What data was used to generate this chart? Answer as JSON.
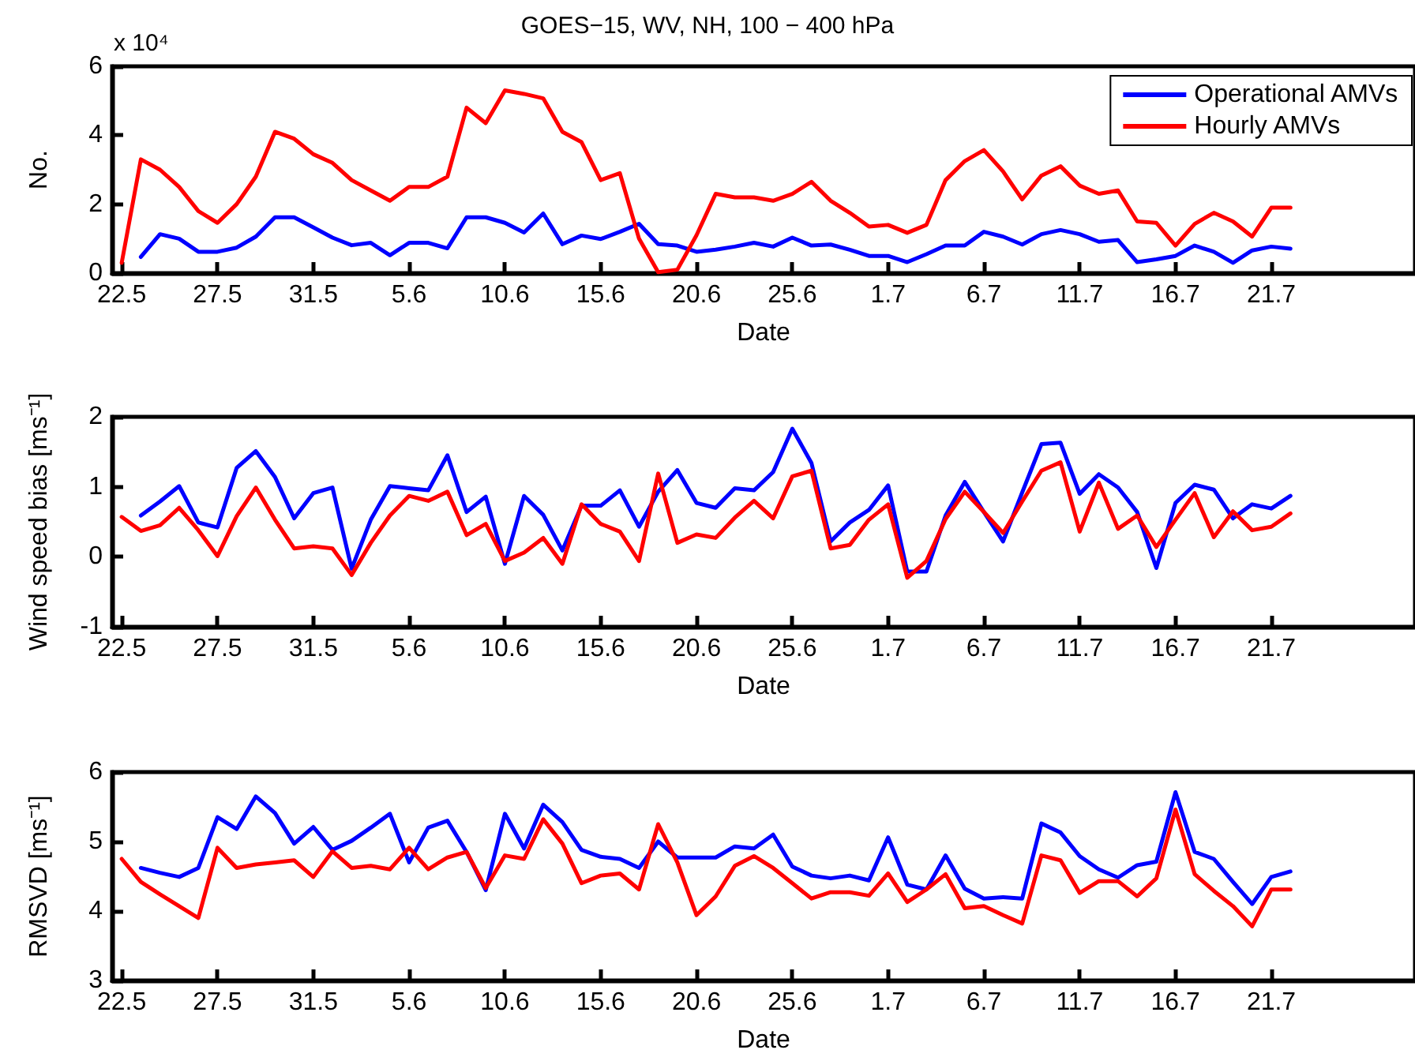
{
  "chart_data": [
    {
      "type": "line",
      "title": "GOES−15, WV, NH, 100 − 400 hPa",
      "xlabel": "Date",
      "ylabel": "No.",
      "annotations": [
        "x 10⁴"
      ],
      "legend": "top right",
      "categories": [
        "22.5",
        null,
        null,
        null,
        null,
        "27.5",
        null,
        null,
        null,
        null,
        "31.5",
        null,
        null,
        null,
        null,
        "5.6",
        null,
        null,
        null,
        null,
        "10.6",
        null,
        null,
        null,
        null,
        "15.6",
        null,
        null,
        null,
        null,
        "20.6",
        null,
        null,
        null,
        null,
        "25.6",
        null,
        null,
        null,
        null,
        "1.7",
        null,
        null,
        null,
        null,
        "6.7",
        null,
        null,
        null,
        null,
        "11.7",
        null,
        null,
        null,
        null,
        "16.7",
        null,
        null,
        null,
        null,
        "21.7",
        null,
        null,
        null,
        null,
        null,
        null,
        null
      ],
      "ylim": [
        0,
        6
      ],
      "yticks": [
        0,
        2,
        4,
        6
      ],
      "series": [
        {
          "name": "Operational AMVs",
          "color": "#0000ff",
          "values": [
            null,
            0.47,
            1.13,
            1.0,
            0.62,
            0.62,
            0.74,
            1.06,
            1.62,
            1.62,
            1.33,
            1.03,
            0.81,
            0.88,
            0.52,
            0.88,
            0.88,
            0.72,
            1.62,
            1.62,
            1.46,
            1.18,
            1.73,
            0.84,
            1.09,
            0.99,
            1.2,
            1.43,
            0.84,
            0.8,
            0.62,
            0.68,
            0.77,
            0.88,
            0.77,
            1.03,
            0.8,
            0.83,
            0.68,
            0.5,
            0.5,
            0.32,
            0.55,
            0.8,
            0.8,
            1.2,
            1.06,
            0.83,
            1.13,
            1.25,
            1.13,
            0.91,
            0.96,
            0.32,
            0.4,
            0.5,
            0.8,
            0.62,
            0.3,
            0.66,
            0.77,
            0.71,
            null,
            null,
            null,
            null,
            null,
            null
          ]
        },
        {
          "name": "Hourly AMVs",
          "color": "#ff0000",
          "values": [
            0.3,
            3.3,
            3.0,
            2.5,
            1.8,
            1.46,
            2.0,
            2.8,
            4.1,
            3.9,
            3.45,
            3.2,
            2.7,
            2.4,
            2.1,
            2.5,
            2.5,
            2.8,
            4.8,
            4.35,
            5.3,
            5.2,
            5.07,
            4.1,
            3.8,
            2.7,
            2.9,
            1.0,
            0.03,
            0.1,
            1.1,
            2.3,
            2.2,
            2.2,
            2.1,
            2.3,
            2.65,
            2.1,
            1.75,
            1.35,
            1.4,
            1.17,
            1.4,
            2.7,
            3.25,
            3.57,
            2.95,
            2.14,
            2.83,
            3.1,
            2.54,
            2.3,
            2.4,
            1.5,
            1.46,
            0.8,
            1.43,
            1.75,
            1.5,
            1.06,
            1.9,
            1.9,
            null,
            null,
            null,
            null,
            null,
            null
          ]
        }
      ]
    },
    {
      "type": "line",
      "xlabel": "Date",
      "ylabel": "Wind speed bias [ms⁻¹]",
      "categories": [
        "22.5",
        null,
        null,
        null,
        null,
        "27.5",
        null,
        null,
        null,
        null,
        "31.5",
        null,
        null,
        null,
        null,
        "5.6",
        null,
        null,
        null,
        null,
        "10.6",
        null,
        null,
        null,
        null,
        "15.6",
        null,
        null,
        null,
        null,
        "20.6",
        null,
        null,
        null,
        null,
        "25.6",
        null,
        null,
        null,
        null,
        "1.7",
        null,
        null,
        null,
        null,
        "6.7",
        null,
        null,
        null,
        null,
        "11.7",
        null,
        null,
        null,
        null,
        "16.7",
        null,
        null,
        null,
        null,
        "21.7",
        null,
        null,
        null,
        null,
        null,
        null,
        null
      ],
      "ylim": [
        -1,
        2
      ],
      "yticks": [
        -1,
        0,
        1,
        2
      ],
      "series": [
        {
          "color": "#0000ff",
          "values": [
            null,
            0.59,
            0.79,
            1.01,
            0.49,
            0.42,
            1.27,
            1.51,
            1.14,
            0.55,
            0.91,
            0.99,
            -0.17,
            0.53,
            1.01,
            0.98,
            0.95,
            1.45,
            0.64,
            0.86,
            -0.1,
            0.87,
            0.6,
            0.09,
            0.73,
            0.73,
            0.95,
            0.43,
            0.93,
            1.24,
            0.77,
            0.7,
            0.98,
            0.95,
            1.21,
            1.83,
            1.34,
            0.22,
            0.49,
            0.67,
            1.02,
            -0.21,
            -0.21,
            0.59,
            1.07,
            0.64,
            0.22,
            0.92,
            1.61,
            1.63,
            0.9,
            1.18,
            0.99,
            0.64,
            -0.16,
            0.77,
            1.03,
            0.96,
            0.55,
            0.75,
            0.69,
            0.87,
            null,
            null,
            null,
            null,
            null,
            null
          ]
        },
        {
          "color": "#ff0000",
          "values": [
            0.57,
            0.37,
            0.45,
            0.7,
            0.38,
            0.01,
            0.58,
            0.99,
            0.53,
            0.12,
            0.15,
            0.12,
            -0.26,
            0.2,
            0.59,
            0.87,
            0.8,
            0.93,
            0.31,
            0.47,
            -0.06,
            0.06,
            0.27,
            -0.1,
            0.75,
            0.47,
            0.36,
            -0.06,
            1.19,
            0.2,
            0.32,
            0.27,
            0.56,
            0.8,
            0.55,
            1.15,
            1.23,
            0.12,
            0.17,
            0.53,
            0.75,
            -0.3,
            -0.06,
            0.54,
            0.93,
            0.64,
            0.34,
            0.79,
            1.23,
            1.35,
            0.36,
            1.06,
            0.4,
            0.59,
            0.14,
            0.53,
            0.91,
            0.28,
            0.65,
            0.38,
            0.43,
            0.62,
            null,
            null,
            null,
            null,
            null,
            null
          ]
        }
      ]
    },
    {
      "type": "line",
      "xlabel": "Date",
      "ylabel": "RMSVD [ms⁻¹]",
      "categories": [
        "22.5",
        null,
        null,
        null,
        null,
        "27.5",
        null,
        null,
        null,
        null,
        "31.5",
        null,
        null,
        null,
        null,
        "5.6",
        null,
        null,
        null,
        null,
        "10.6",
        null,
        null,
        null,
        null,
        "15.6",
        null,
        null,
        null,
        null,
        "20.6",
        null,
        null,
        null,
        null,
        "25.6",
        null,
        null,
        null,
        null,
        "1.7",
        null,
        null,
        null,
        null,
        "6.7",
        null,
        null,
        null,
        null,
        "11.7",
        null,
        null,
        null,
        null,
        "16.7",
        null,
        null,
        null,
        null,
        "21.7",
        null,
        null,
        null,
        null,
        null,
        null,
        null
      ],
      "ylim": [
        3,
        6
      ],
      "yticks": [
        3,
        4,
        5,
        6
      ],
      "series": [
        {
          "color": "#0000ff",
          "values": [
            null,
            4.62,
            4.55,
            4.49,
            4.62,
            5.35,
            5.18,
            5.65,
            5.41,
            4.97,
            5.21,
            4.88,
            5.01,
            5.2,
            5.4,
            4.7,
            5.2,
            5.3,
            4.85,
            4.3,
            5.4,
            4.9,
            5.53,
            5.28,
            4.88,
            4.78,
            4.75,
            4.62,
            5.0,
            4.77,
            4.77,
            4.77,
            4.93,
            4.9,
            5.1,
            4.64,
            4.51,
            4.47,
            4.51,
            4.44,
            5.06,
            4.38,
            4.31,
            4.8,
            4.32,
            4.18,
            4.2,
            4.18,
            5.26,
            5.13,
            4.79,
            4.6,
            4.48,
            4.66,
            4.71,
            5.71,
            4.85,
            4.75,
            4.42,
            4.1,
            4.49,
            4.57,
            null,
            null,
            null,
            null,
            null,
            null
          ]
        },
        {
          "color": "#ff0000",
          "values": [
            4.75,
            4.42,
            4.24,
            4.07,
            3.9,
            4.91,
            4.62,
            4.67,
            4.7,
            4.73,
            4.49,
            4.86,
            4.62,
            4.65,
            4.6,
            4.91,
            4.6,
            4.77,
            4.85,
            4.33,
            4.8,
            4.75,
            5.32,
            4.97,
            4.4,
            4.51,
            4.54,
            4.31,
            5.25,
            4.7,
            3.94,
            4.21,
            4.65,
            4.79,
            4.62,
            4.4,
            4.18,
            4.27,
            4.27,
            4.22,
            4.54,
            4.13,
            4.31,
            4.53,
            4.04,
            4.07,
            3.94,
            3.82,
            4.8,
            4.73,
            4.26,
            4.43,
            4.43,
            4.21,
            4.47,
            5.46,
            4.53,
            4.29,
            4.07,
            3.78,
            4.31,
            4.31,
            null,
            null,
            null,
            null,
            null,
            null
          ]
        }
      ]
    }
  ]
}
